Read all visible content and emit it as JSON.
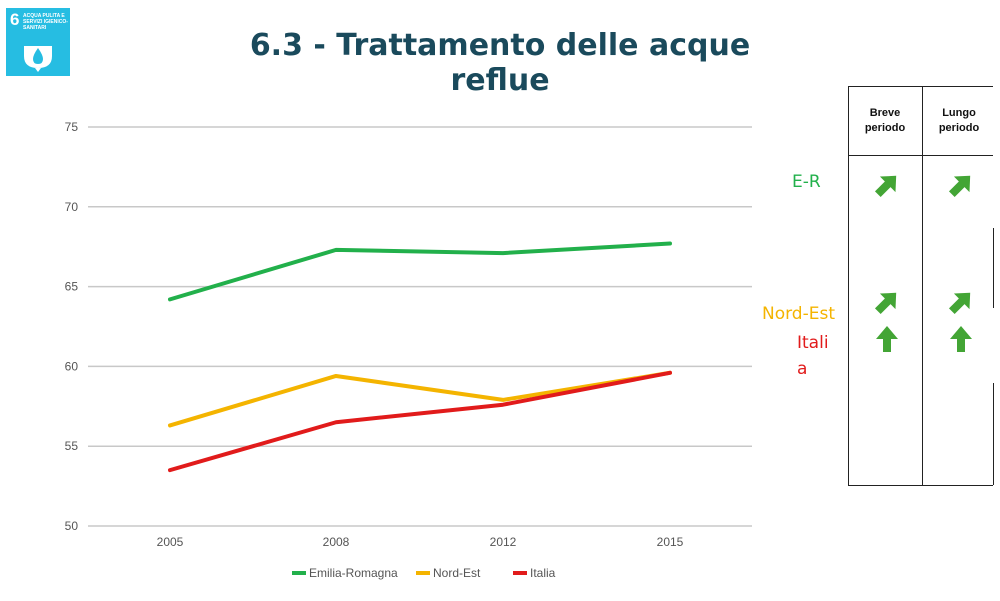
{
  "logo": {
    "number": "6",
    "text": "ACQUA PULITA E SERVIZI IGIENICO-SANITARI"
  },
  "title": "6.3 - Trattamento delle acque reflue",
  "chart_data": {
    "type": "line",
    "title": "",
    "xlabel": "",
    "ylabel": "",
    "categories": [
      "2005",
      "2008",
      "2012",
      "2015"
    ],
    "ylim": [
      50,
      75
    ],
    "yticks": [
      50,
      55,
      60,
      65,
      70,
      75
    ],
    "grid": "horizontal",
    "legend_position": "bottom",
    "series": [
      {
        "name": "Emilia-Romagna",
        "color": "#22b04b",
        "values": [
          64.2,
          67.3,
          67.1,
          67.7
        ]
      },
      {
        "name": "Nord-Est",
        "color": "#f4b400",
        "values": [
          56.3,
          59.4,
          57.9,
          59.6
        ]
      },
      {
        "name": "Italia",
        "color": "#e11b1b",
        "values": [
          53.5,
          56.5,
          57.6,
          59.6
        ]
      }
    ]
  },
  "labels": {
    "er": "E-R",
    "ne": "Nord-Est",
    "it": "Italia"
  },
  "trend_table": {
    "headers": [
      "Breve periodo",
      "Lungo periodo"
    ],
    "arrow_color": "#43a535",
    "rows": [
      {
        "name": "E-R",
        "breve": "up-right",
        "lungo": "up-right"
      },
      {
        "name": "Nord-Est",
        "breve": "up-right",
        "lungo": "up-right"
      },
      {
        "name": "Italia",
        "breve": "up",
        "lungo": "up"
      }
    ]
  }
}
